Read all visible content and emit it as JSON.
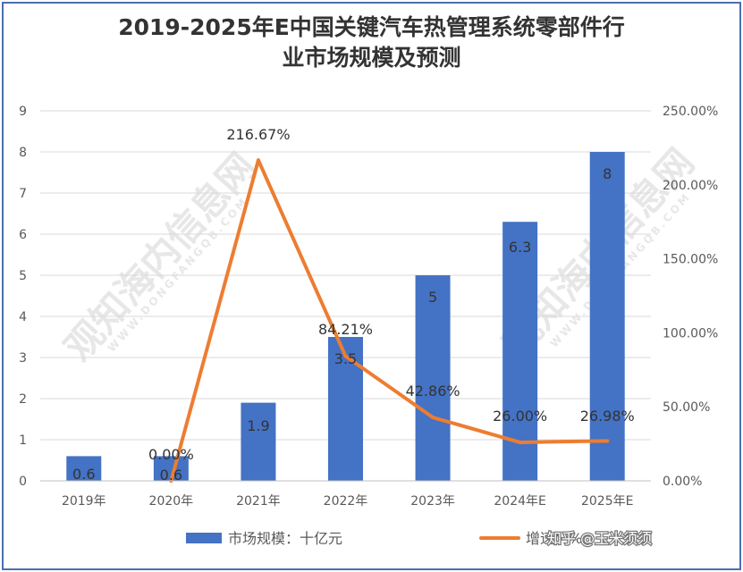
{
  "title_line1": "2019-2025年E中国关键汽车热管理系统零部件行",
  "title_line2": "业市场规模及预测",
  "watermark": {
    "brand": "观知海内信息网",
    "domain": "WWW.DONGFANGQB.COM",
    "credit": "知乎 @玉米须须"
  },
  "colors": {
    "bar": "#4472c4",
    "line": "#ed7d31",
    "grid": "#d9d9d9",
    "axis_text": "#595959",
    "frame": "#4a6fb3"
  },
  "chart_data": {
    "type": "bar+line",
    "categories": [
      "2019年",
      "2020年",
      "2021年",
      "2022年",
      "2023年",
      "2024年E",
      "2025年E"
    ],
    "series": [
      {
        "name": "市场规模：十亿元",
        "type": "bar",
        "axis": "left",
        "values": [
          0.6,
          0.6,
          1.9,
          3.5,
          5,
          6.3,
          8
        ],
        "labels": [
          "0.6",
          "0.6",
          "1.9",
          "3.5",
          "5",
          "6.3",
          "8"
        ]
      },
      {
        "name": "增速：%",
        "type": "line",
        "axis": "right",
        "values": [
          null,
          0.0,
          216.67,
          84.21,
          42.86,
          26.0,
          26.98
        ],
        "labels": [
          "",
          "0.00%",
          "216.67%",
          "84.21%",
          "42.86%",
          "26.00%",
          "26.98%"
        ]
      }
    ],
    "y_left": {
      "min": 0,
      "max": 9,
      "ticks": [
        "0",
        "1",
        "2",
        "3",
        "4",
        "5",
        "6",
        "7",
        "8",
        "9"
      ]
    },
    "y_right": {
      "min": 0,
      "max": 250,
      "ticks": [
        "0.00%",
        "50.00%",
        "100.00%",
        "150.00%",
        "200.00%",
        "250.00%"
      ]
    },
    "grid": true,
    "legend": "bottom"
  }
}
